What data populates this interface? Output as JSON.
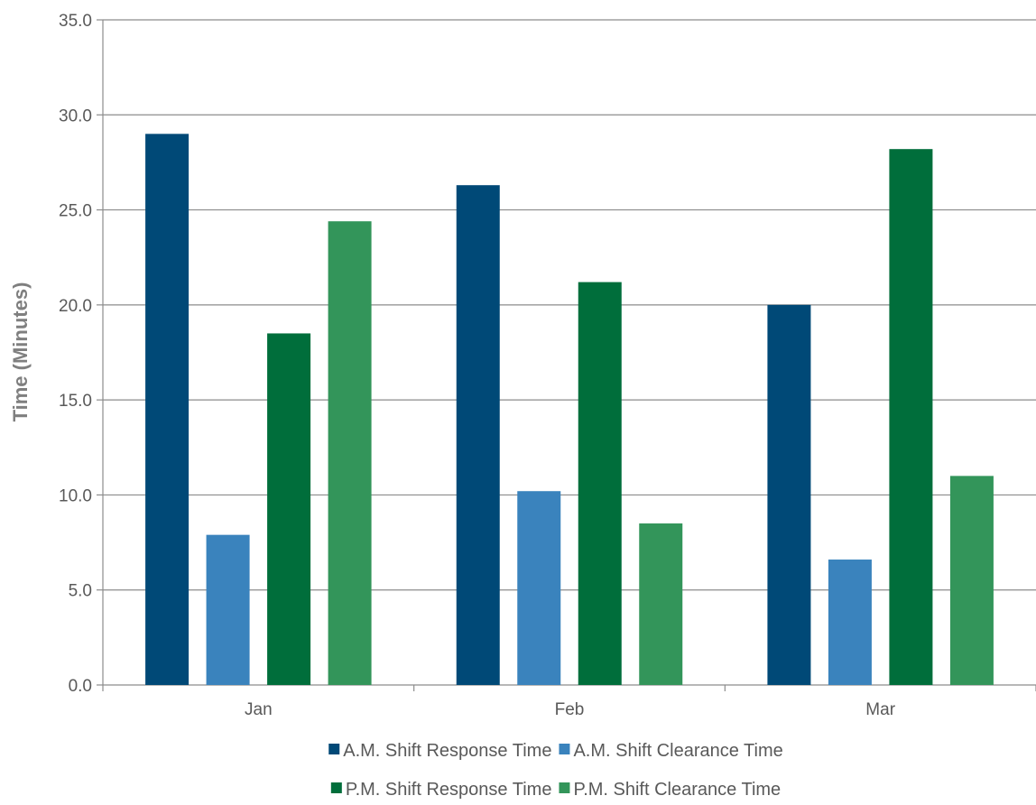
{
  "chart_data": {
    "type": "bar",
    "title": "",
    "xlabel": "",
    "ylabel": "Time (Minutes)",
    "ylim": [
      0,
      35
    ],
    "ytick_values": [
      0,
      5,
      10,
      15,
      20,
      25,
      30,
      35
    ],
    "ytick_labels": [
      "0.0",
      "5.0",
      "10.0",
      "15.0",
      "20.0",
      "25.0",
      "30.0",
      "35.0"
    ],
    "categories": [
      "Jan",
      "Feb",
      "Mar"
    ],
    "grid": "horizontal",
    "legend_position": "bottom",
    "series": [
      {
        "name": "A.M. Shift Response Time",
        "color": "#004977",
        "values": [
          29.0,
          26.3,
          20.0
        ]
      },
      {
        "name": "A.M. Shift Clearance Time",
        "color": "#3a83bd",
        "values": [
          7.9,
          10.2,
          6.6
        ]
      },
      {
        "name": "P.M. Shift Response Time",
        "color": "#006e3b",
        "values": [
          18.5,
          21.2,
          28.2
        ]
      },
      {
        "name": "P.M. Shift Clearance Time",
        "color": "#33955a",
        "values": [
          24.4,
          8.5,
          11.0
        ]
      }
    ]
  }
}
